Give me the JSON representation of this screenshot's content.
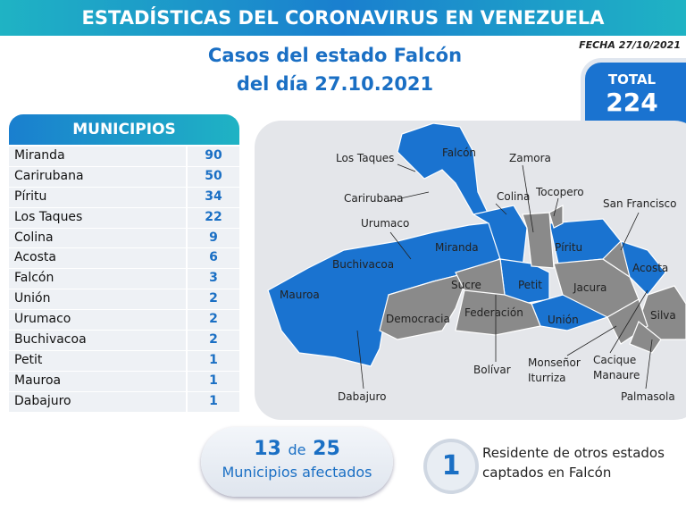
{
  "header": {
    "title": "ESTADÍSTICAS DEL CORONAVIRUS EN VENEZUELA",
    "date": "FECHA 27/10/2021"
  },
  "subtitle": [
    "Casos del estado Falcón",
    "del día 27.10.2021"
  ],
  "total": {
    "label": "TOTAL",
    "value": 224
  },
  "table": {
    "header": "MUNICIPIOS",
    "rows": [
      [
        "Miranda",
        90
      ],
      [
        "Carirubana",
        50
      ],
      [
        "Píritu",
        34
      ],
      [
        "Los Taques",
        22
      ],
      [
        "Colina",
        9
      ],
      [
        "Acosta",
        6
      ],
      [
        "Falcón",
        3
      ],
      [
        "Unión",
        2
      ],
      [
        "Urumaco",
        2
      ],
      [
        "Buchivacoa",
        2
      ],
      [
        "Petit",
        1
      ],
      [
        "Mauroa",
        1
      ],
      [
        "Dabajuro",
        1
      ]
    ]
  },
  "map": {
    "labels": [
      "Los Taques",
      "Falcón",
      "Zamora",
      "Carirubana",
      "Colina",
      "Tocopero",
      "San Francisco",
      "Urumaco",
      "Miranda",
      "Píritu",
      "Buchivacoa",
      "Acosta",
      "Mauroa",
      "Sucre",
      "Petit",
      "Jacura",
      "Democracia",
      "Federación",
      "Unión",
      "Silva",
      "Bolívar",
      "Monseñor Iturriza",
      "Cacique Manaure",
      "Dabajuro",
      "Palmasola"
    ]
  },
  "footer": {
    "affected": 13,
    "connector": "de",
    "total": 25,
    "caption": "Municipios afectados",
    "residents": 1,
    "residents_text": [
      "Residente de otros estados",
      "captados en Falcón"
    ]
  }
}
